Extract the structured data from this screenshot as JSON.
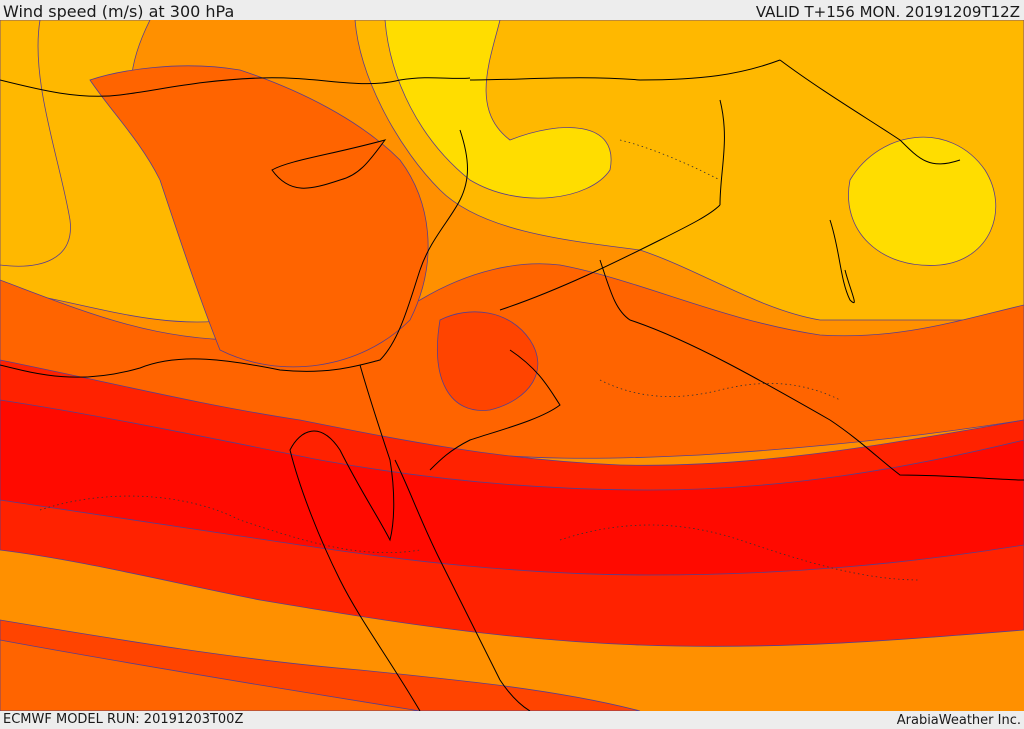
{
  "header": {
    "title": "Wind speed (m/s) at 300 hPa",
    "valid_time": "VALID T+156 MON. 20191209T12Z"
  },
  "footer": {
    "model_run": "ECMWF MODEL RUN: 20191203T00Z",
    "credit": "ArabiaWeather Inc."
  },
  "map": {
    "variable": "wind speed",
    "level": "300 hPa",
    "region": "Eastern Mediterranean / Middle East",
    "palette": {
      "band_1": "#ffdd00",
      "band_2": "#ffb800",
      "band_3": "#ff9000",
      "band_4": "#ff6400",
      "band_5": "#ff4400",
      "band_6": "#ff2200",
      "band_7": "#ff0a00",
      "contour": "#5a3e8c",
      "coastline": "#000000",
      "border": "#000000"
    }
  }
}
